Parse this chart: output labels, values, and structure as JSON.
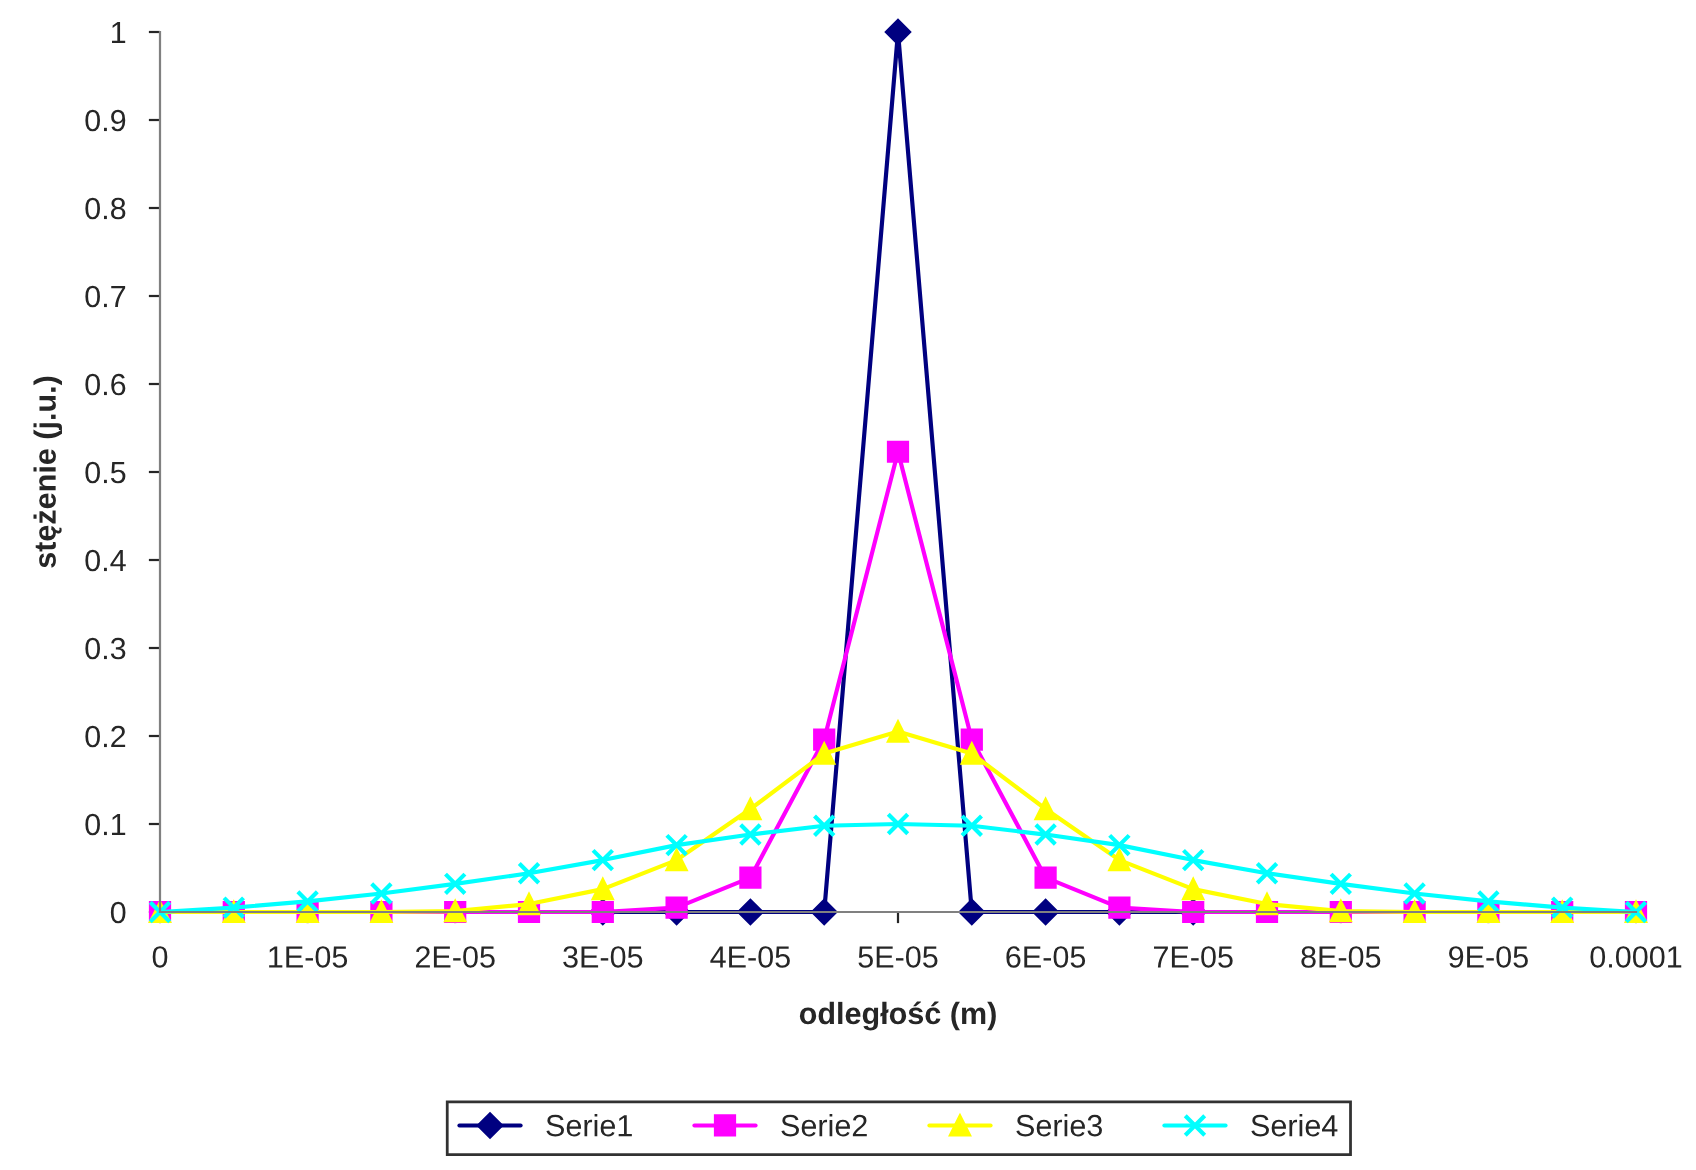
{
  "chart_data": {
    "type": "line",
    "xlabel": "odległość (m)",
    "ylabel": "stężenie (j.u.)",
    "x": [
      0,
      5e-06,
      1e-05,
      1.5e-05,
      2e-05,
      2.5e-05,
      3e-05,
      3.5e-05,
      4e-05,
      4.5e-05,
      5e-05,
      5.5e-05,
      6e-05,
      6.5e-05,
      7e-05,
      7.5e-05,
      8e-05,
      8.5e-05,
      9e-05,
      9.5e-05,
      0.0001
    ],
    "series": [
      {
        "name": "Serie1",
        "color": "#000080",
        "marker": "diamond",
        "values": [
          null,
          null,
          null,
          null,
          null,
          null,
          0,
          0,
          0,
          0,
          1,
          0,
          0,
          0,
          0,
          null,
          null,
          null,
          null,
          null,
          null
        ]
      },
      {
        "name": "Serie2",
        "color": "#ff00ff",
        "marker": "square",
        "values": [
          0,
          0,
          0,
          0,
          0,
          0,
          0,
          0.005,
          0.039,
          0.196,
          0.523,
          0.196,
          0.039,
          0.005,
          0,
          0,
          0,
          0,
          0,
          0,
          0
        ]
      },
      {
        "name": "Serie3",
        "color": "#ffff00",
        "marker": "triangle",
        "values": [
          0,
          0,
          0,
          0,
          0.001,
          0.009,
          0.026,
          0.059,
          0.117,
          0.18,
          0.205,
          0.18,
          0.117,
          0.059,
          0.026,
          0.009,
          0.001,
          0,
          0,
          0,
          0
        ]
      },
      {
        "name": "Serie4",
        "color": "#00ffff",
        "marker": "cross",
        "values": [
          0,
          0.005,
          0.012,
          0.021,
          0.032,
          0.044,
          0.059,
          0.076,
          0.088,
          0.098,
          0.1,
          0.098,
          0.088,
          0.076,
          0.059,
          0.044,
          0.032,
          0.021,
          0.012,
          0.005,
          0
        ]
      }
    ],
    "xlim": [
      0,
      0.0001
    ],
    "xticks": [
      {
        "value": 0,
        "label": "0"
      },
      {
        "value": 1e-05,
        "label": "1E-05"
      },
      {
        "value": 2e-05,
        "label": "2E-05"
      },
      {
        "value": 3e-05,
        "label": "3E-05"
      },
      {
        "value": 4e-05,
        "label": "4E-05"
      },
      {
        "value": 5e-05,
        "label": "5E-05"
      },
      {
        "value": 6e-05,
        "label": "6E-05"
      },
      {
        "value": 7e-05,
        "label": "7E-05"
      },
      {
        "value": 8e-05,
        "label": "8E-05"
      },
      {
        "value": 9e-05,
        "label": "9E-05"
      },
      {
        "value": 0.0001,
        "label": "0.0001"
      }
    ],
    "ylim": [
      0,
      1
    ],
    "yticks": [
      0,
      0.1,
      0.2,
      0.3,
      0.4,
      0.5,
      0.6,
      0.7,
      0.8,
      0.9,
      1
    ],
    "grid": false,
    "legend": "bottom",
    "line_style": "solid"
  }
}
